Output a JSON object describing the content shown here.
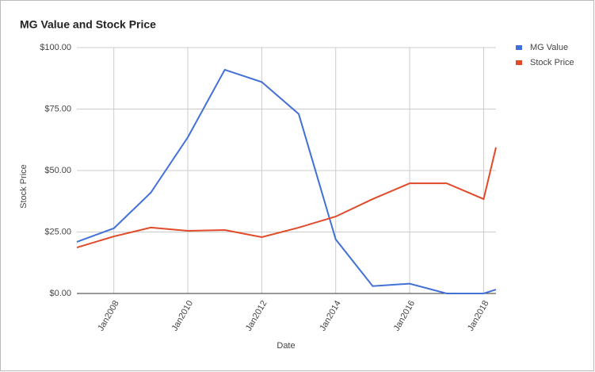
{
  "chart_data": {
    "type": "line",
    "title": "MG Value and Stock Price",
    "x_label": "Date",
    "y_label": "Stock Price",
    "x": [
      "2007-01",
      "2008-01",
      "2009-01",
      "2010-01",
      "2011-01",
      "2012-01",
      "2013-01",
      "2014-01",
      "2015-01",
      "2016-01",
      "2017-01",
      "2018-01",
      "2018-05"
    ],
    "series": [
      {
        "name": "MG Value",
        "color": "#4170d6",
        "values": [
          21,
          26.5,
          41,
          63.5,
          91,
          86,
          73,
          22,
          3,
          4,
          0,
          0,
          1.6
        ]
      },
      {
        "name": "Stock Price",
        "color": "#e04a28",
        "values": [
          18.7,
          23.2,
          26.8,
          25.5,
          25.8,
          22.9,
          26.8,
          31.3,
          38.4,
          44.8,
          44.8,
          38.4,
          59.4
        ]
      }
    ],
    "xlim": [
      "2007-01",
      "2018-05"
    ],
    "xticks": [
      {
        "value": "2008-01",
        "label": "Jan2008"
      },
      {
        "value": "2010-01",
        "label": "Jan2010"
      },
      {
        "value": "2012-01",
        "label": "Jan2012"
      },
      {
        "value": "2014-01",
        "label": "Jan2014"
      },
      {
        "value": "2016-01",
        "label": "Jan2016"
      },
      {
        "value": "2018-01",
        "label": "Jan2018"
      }
    ],
    "ylim": [
      0,
      100
    ],
    "yticks": [
      {
        "value": 0,
        "label": "$0.00"
      },
      {
        "value": 25,
        "label": "$25.00"
      },
      {
        "value": 50,
        "label": "$50.00"
      },
      {
        "value": 75,
        "label": "$75.00"
      },
      {
        "value": 100,
        "label": "$100.00"
      }
    ],
    "grid": true,
    "legend": "right"
  }
}
